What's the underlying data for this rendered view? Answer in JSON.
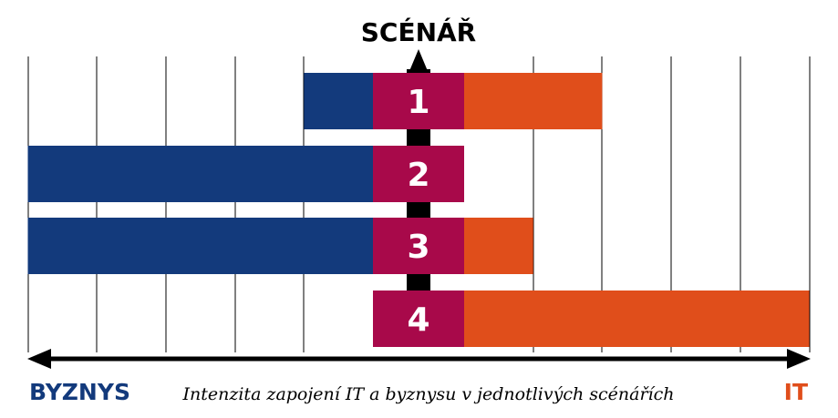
{
  "chart_data": {
    "type": "bar",
    "title": "SCÉNÁŘ",
    "caption": "Intenzita zapojení IT a byznysu v jednotlivých scénářích",
    "left_label": "BYZNYS",
    "right_label": "IT",
    "categories": [
      "1",
      "2",
      "3",
      "4"
    ],
    "series": [
      {
        "name": "BYZNYS",
        "values": [
          1,
          5,
          5,
          0
        ]
      },
      {
        "name": "IT",
        "values": [
          2,
          0,
          1,
          5
        ]
      }
    ],
    "grid": true,
    "colors": {
      "byznys": "#133a7c",
      "it": "#e04e1b",
      "center": "#a8094a",
      "axis": "#000000"
    }
  }
}
